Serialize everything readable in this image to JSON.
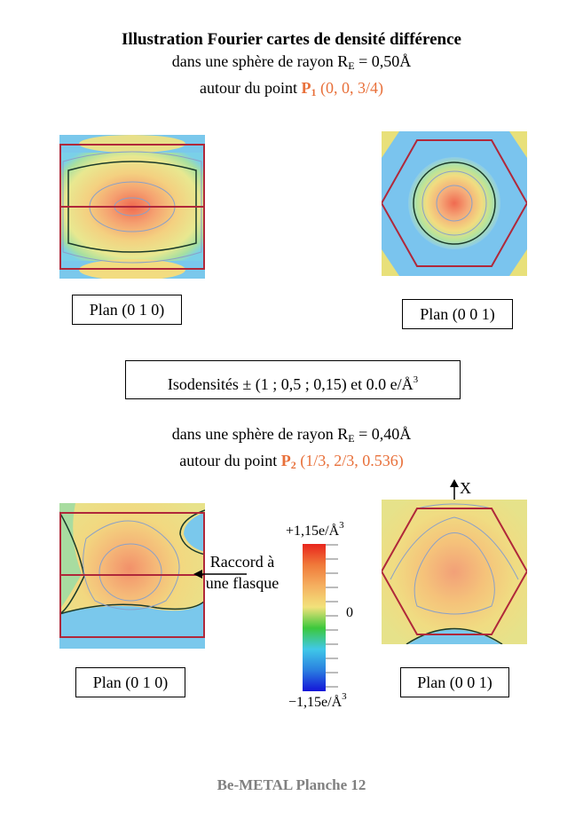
{
  "header": {
    "title": "Illustration Fourier cartes de densité différence",
    "line2_prefix": "dans une sphère de rayon R",
    "line2_sub": "E",
    "line2_suffix": " = 0,50Å",
    "line3_prefix": "autour du point ",
    "line3_point": "P",
    "line3_point_sub": "1",
    "line3_coords": " (0, 0, 3/4)"
  },
  "top_maps": {
    "left_label": "Plan (0 1 0)",
    "right_label": "Plan (0 0 1)"
  },
  "isodensity": {
    "text": "Isodensités ± (1 ; 0,5 ; 0,15) et 0.0 e/Å",
    "sup": "3"
  },
  "middle": {
    "line1_prefix": "dans une sphère de rayon R",
    "line1_sub": "E",
    "line1_suffix": " = 0,40Å",
    "line2_prefix": "autour du point ",
    "line2_point": "P",
    "line2_point_sub": "2",
    "line2_coords": " (1/3, 2/3, 0.536)"
  },
  "bottom_maps": {
    "left_label": "Plan (0 1 0)",
    "right_label": "Plan (0 0 1)",
    "axis_label": "X",
    "callout_line1": "Raccord à",
    "callout_line2": "une flasque"
  },
  "color_scale": {
    "top_label": "+1,15e/Å",
    "top_sup": "3",
    "zero_label": "0",
    "bottom_label": "−1,15e/Å",
    "bottom_sup": "3",
    "colors": [
      "#e8251c",
      "#f07a3a",
      "#f5b060",
      "#f2e27a",
      "#3cc83c",
      "#40c8e8",
      "#2a7fe0",
      "#1414d8"
    ]
  },
  "footer": {
    "text": "Be-METAL Planche 12"
  },
  "colors": {
    "accent_orange": "#e8703a",
    "outline_red": "#b0283a",
    "footer_gray": "#808080"
  }
}
